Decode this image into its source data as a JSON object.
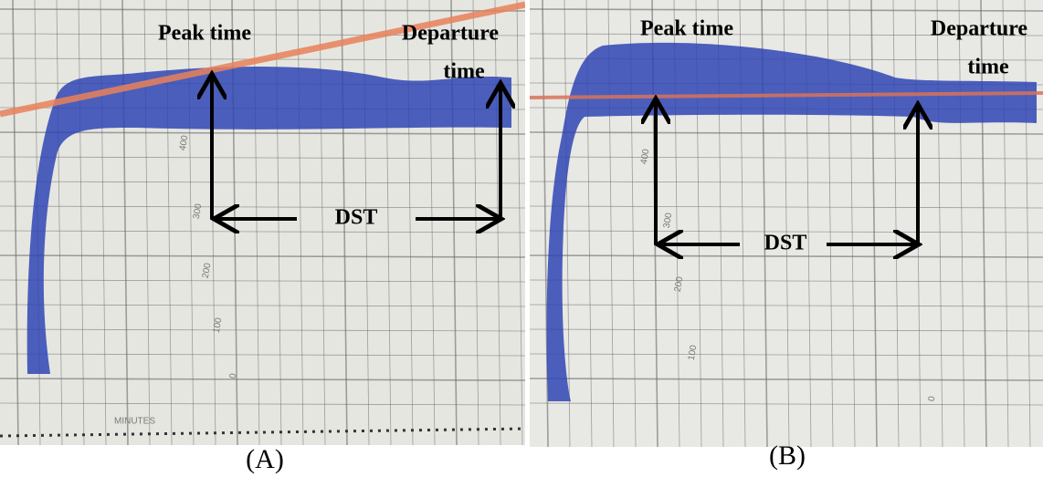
{
  "panels": [
    {
      "label": "(A)",
      "peak": "Peak time",
      "departure": [
        "Departure",
        "time"
      ],
      "interval": "DST",
      "scale_labels": [
        "400",
        "300",
        "200",
        "100",
        "0"
      ],
      "axis_label": "MINUTES"
    },
    {
      "label": "(B)",
      "peak": "Peak time",
      "departure": [
        "Departure",
        "time"
      ],
      "interval": "DST",
      "scale_labels": [
        "400",
        "300",
        "200",
        "100",
        "0"
      ]
    }
  ]
}
